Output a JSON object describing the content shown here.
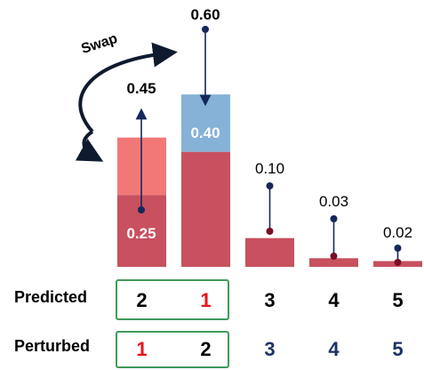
{
  "chart_data": {
    "type": "bar",
    "categories": [
      "1",
      "2",
      "3",
      "4",
      "5"
    ],
    "series": [
      {
        "name": "predicted",
        "values": [
          0.25,
          0.4,
          0.1,
          0.03,
          0.02
        ]
      },
      {
        "name": "perturbed",
        "values": [
          0.45,
          0.6,
          0.1,
          0.03,
          0.02
        ]
      }
    ],
    "value_labels": {
      "bar1_top": "0.45",
      "bar1_base": "0.25",
      "bar2_top": "0.60",
      "bar2_base": "0.40",
      "bar3": "0.10",
      "bar4": "0.03",
      "bar5": "0.02"
    },
    "annotation": "Swap",
    "ylim": [
      0,
      0.62
    ]
  },
  "rows": {
    "predicted": {
      "label": "Predicted",
      "values": [
        "2",
        "1",
        "3",
        "4",
        "5"
      ],
      "colors": [
        "#000000",
        "#e8151b",
        "#000000",
        "#000000",
        "#000000"
      ]
    },
    "perturbed": {
      "label": "Perturbed",
      "values": [
        "1",
        "2",
        "3",
        "4",
        "5"
      ],
      "colors": [
        "#e8151b",
        "#000000",
        "#1c3265",
        "#1c3265",
        "#1c3265"
      ]
    }
  },
  "colors": {
    "base_bar": "#c8505f",
    "pink_extension": "#f27878",
    "blue_extension": "#85b2d6",
    "arrow": "#15285a",
    "box_border": "#3f9a5a",
    "dot_red": "#7a0f25"
  }
}
